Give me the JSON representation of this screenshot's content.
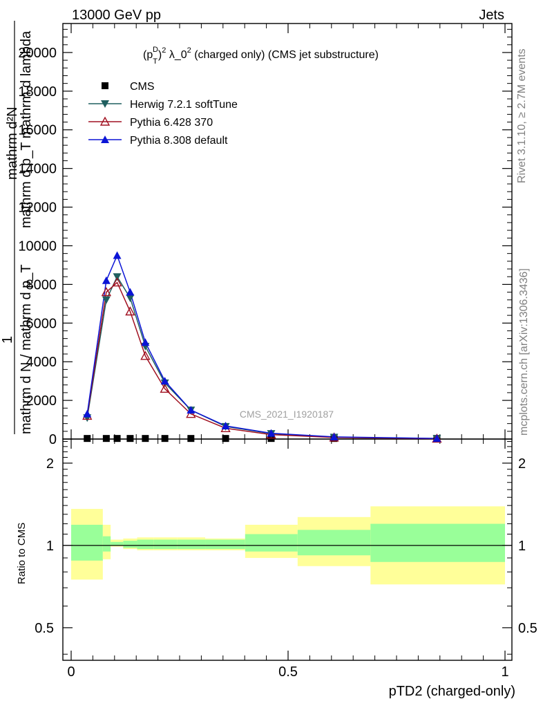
{
  "header": {
    "left": "13000 GeV pp",
    "right": "Jets"
  },
  "side_labels": {
    "rivet": "Rivet 3.1.10, ≥ 2.7M events",
    "mcplots": "mcplots.cern.ch [arXiv:1306.3436]"
  },
  "watermark": "CMS_2021_I1920187",
  "main_plot": {
    "title_parts": [
      "(p",
      "T",
      "D",
      ")",
      "2",
      " λ_0",
      "2",
      " (charged only) (CMS jet substructure)"
    ],
    "ylabel_top": "mathrm d²N",
    "ylabel_top2": "mathrm d p_T mathrm d lambda",
    "ylabel_one": "1",
    "ylabel_bottom": "mathrm d N / mathrm d p_T",
    "yticks": [
      0,
      2000,
      4000,
      6000,
      8000,
      10000,
      12000,
      14000,
      16000,
      18000,
      20000
    ],
    "ytick_labels": [
      "0",
      "2000",
      "4000",
      "6000",
      "8000",
      "10000",
      "12000",
      "14000",
      "16000",
      "18000",
      "20000"
    ]
  },
  "ratio_plot": {
    "ylabel": "Ratio to CMS",
    "yticks": [
      0.5,
      1,
      2
    ],
    "ytick_labels": [
      "0.5",
      "1",
      "2"
    ]
  },
  "x_axis": {
    "label": "pTD2 (charged-only)",
    "ticks": [
      0,
      0.5,
      1
    ],
    "tick_labels": [
      "0",
      "0.5",
      "1"
    ]
  },
  "legend": [
    {
      "name": "CMS",
      "color": "#000000",
      "marker": "square"
    },
    {
      "name": "Herwig 7.2.1 softTune",
      "color": "#1f5f5f",
      "marker": "triangle-down"
    },
    {
      "name": "Pythia 6.428 370",
      "color": "#a01020",
      "marker": "triangle-open"
    },
    {
      "name": "Pythia 8.308 default",
      "color": "#0b14d6",
      "marker": "triangle-up"
    }
  ],
  "chart_data": {
    "type": "line",
    "x": [
      0.037,
      0.081,
      0.106,
      0.136,
      0.171,
      0.216,
      0.276,
      0.356,
      0.461,
      0.606,
      0.843
    ],
    "xlim": [
      -0.02,
      1.02
    ],
    "ylim": [
      0,
      21500
    ],
    "ratio_ylim": [
      0.38,
      2.45
    ],
    "series": [
      {
        "name": "CMS",
        "values": [
          30,
          30,
          30,
          30,
          30,
          30,
          30,
          30,
          30,
          30,
          30
        ]
      },
      {
        "name": "Herwig 7.2.1 softTune",
        "values": [
          1100,
          7200,
          8400,
          7300,
          4800,
          2900,
          1500,
          650,
          280,
          95,
          25
        ]
      },
      {
        "name": "Pythia 6.428 370",
        "values": [
          1200,
          7600,
          8100,
          6600,
          4300,
          2600,
          1300,
          560,
          230,
          80,
          20
        ]
      },
      {
        "name": "Pythia 8.308 default",
        "values": [
          1300,
          8200,
          9500,
          7600,
          5000,
          3000,
          1500,
          680,
          300,
          110,
          30
        ]
      }
    ],
    "ratio_bands": {
      "edges": [
        0.0,
        0.073,
        0.091,
        0.12,
        0.152,
        0.19,
        0.244,
        0.309,
        0.401,
        0.522,
        0.69,
        1.0
      ],
      "inner": [
        [
          0.88,
          1.19
        ],
        [
          0.95,
          1.08
        ],
        [
          1.0,
          1.03
        ],
        [
          0.98,
          1.04
        ],
        [
          0.97,
          1.05
        ],
        [
          0.97,
          1.05
        ],
        [
          0.97,
          1.05
        ],
        [
          0.97,
          1.05
        ],
        [
          0.95,
          1.1
        ],
        [
          0.92,
          1.14
        ],
        [
          0.87,
          1.2
        ]
      ],
      "outer": [
        [
          0.75,
          1.36
        ],
        [
          0.89,
          1.19
        ],
        [
          0.99,
          1.05
        ],
        [
          0.97,
          1.06
        ],
        [
          0.96,
          1.07
        ],
        [
          0.96,
          1.07
        ],
        [
          0.96,
          1.07
        ],
        [
          0.96,
          1.06
        ],
        [
          0.9,
          1.19
        ],
        [
          0.84,
          1.27
        ],
        [
          0.72,
          1.39
        ]
      ]
    }
  }
}
